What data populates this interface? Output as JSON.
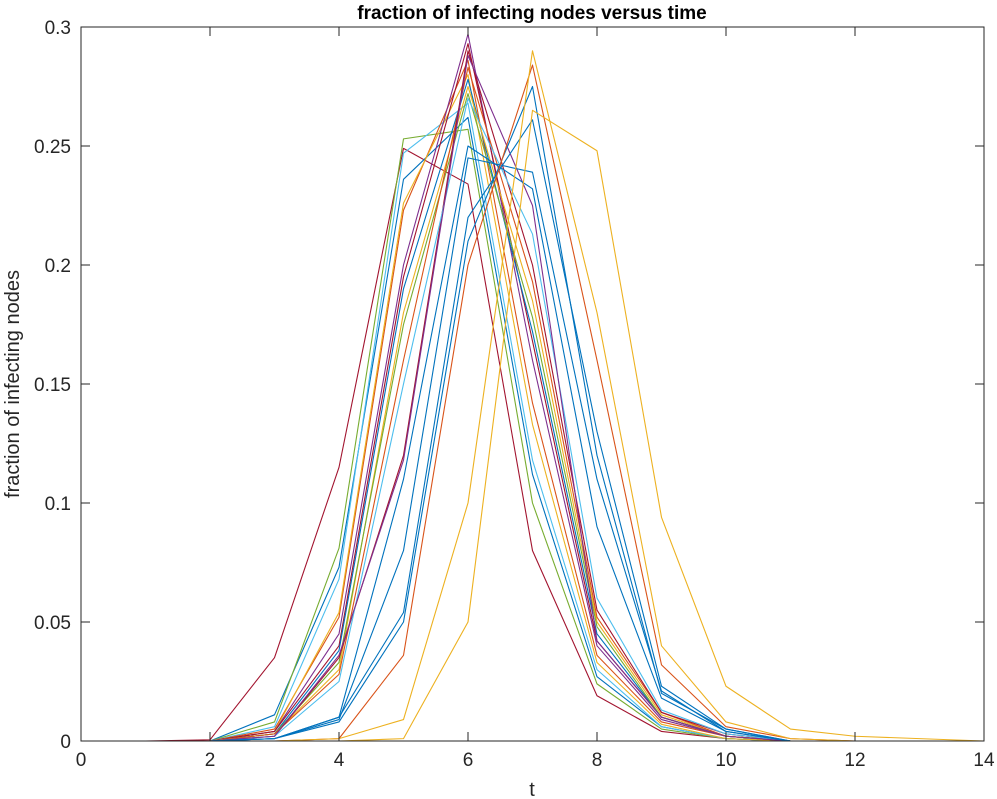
{
  "chart_data": {
    "type": "line",
    "title": "fraction of infecting nodes versus time",
    "xlabel": "t",
    "ylabel": "fraction of infecting nodes",
    "xlim": [
      0,
      14
    ],
    "ylim": [
      0,
      0.3
    ],
    "xticks": [
      "0",
      "2",
      "4",
      "6",
      "8",
      "10",
      "12",
      "14"
    ],
    "yticks": [
      "0",
      "0.05",
      "0.1",
      "0.15",
      "0.2",
      "0.25",
      "0.3"
    ],
    "grid": false,
    "legend": "none",
    "x": [
      1,
      2,
      3,
      4,
      5,
      6,
      7,
      8,
      9,
      10,
      11,
      12,
      13,
      14
    ],
    "series": [
      {
        "color": "#A2142F",
        "values": [
          0,
          0.0005,
          0.035,
          0.115,
          0.249,
          0.234,
          0.08,
          0.019,
          0.004,
          0.001,
          0,
          0,
          0,
          0
        ]
      },
      {
        "color": "#0072BD",
        "values": [
          0,
          0,
          0.011,
          0.073,
          0.236,
          0.262,
          0.112,
          0.027,
          0.006,
          0.001,
          0,
          0,
          0,
          0
        ]
      },
      {
        "color": "#77AC30",
        "values": [
          0,
          0,
          0.008,
          0.081,
          0.253,
          0.257,
          0.1,
          0.024,
          0.005,
          0.001,
          0,
          0,
          0,
          0
        ]
      },
      {
        "color": "#4DBEEE",
        "values": [
          0,
          0,
          0.006,
          0.068,
          0.247,
          0.268,
          0.118,
          0.03,
          0.006,
          0.001,
          0,
          0,
          0,
          0
        ]
      },
      {
        "color": "#D95319",
        "values": [
          0,
          0,
          0.005,
          0.052,
          0.223,
          0.286,
          0.142,
          0.036,
          0.008,
          0.002,
          0,
          0,
          0,
          0
        ]
      },
      {
        "color": "#EDB120",
        "values": [
          0,
          0,
          0.004,
          0.054,
          0.226,
          0.28,
          0.133,
          0.033,
          0.007,
          0.001,
          0,
          0,
          0,
          0
        ]
      },
      {
        "color": "#7E2F8E",
        "values": [
          0,
          0,
          0.004,
          0.045,
          0.2,
          0.297,
          0.16,
          0.04,
          0.009,
          0.002,
          0,
          0,
          0,
          0
        ]
      },
      {
        "color": "#A2142F",
        "values": [
          0,
          0,
          0.004,
          0.04,
          0.195,
          0.293,
          0.168,
          0.042,
          0.01,
          0.002,
          0,
          0,
          0,
          0
        ]
      },
      {
        "color": "#0072BD",
        "values": [
          0,
          0,
          0.003,
          0.038,
          0.19,
          0.278,
          0.172,
          0.045,
          0.01,
          0.002,
          0,
          0,
          0,
          0
        ]
      },
      {
        "color": "#EDB120",
        "values": [
          0,
          0,
          0.003,
          0.03,
          0.18,
          0.275,
          0.185,
          0.05,
          0.011,
          0.002,
          0,
          0,
          0,
          0
        ]
      },
      {
        "color": "#77AC30",
        "values": [
          0,
          0,
          0.003,
          0.033,
          0.175,
          0.272,
          0.178,
          0.048,
          0.01,
          0.002,
          0,
          0,
          0,
          0
        ]
      },
      {
        "color": "#D95319",
        "values": [
          0,
          0,
          0.003,
          0.028,
          0.16,
          0.283,
          0.193,
          0.052,
          0.012,
          0.002,
          0,
          0,
          0,
          0
        ]
      },
      {
        "color": "#A2142F",
        "values": [
          0,
          0,
          0.002,
          0.035,
          0.12,
          0.29,
          0.2,
          0.055,
          0.012,
          0.003,
          0,
          0,
          0,
          0
        ]
      },
      {
        "color": "#4DBEEE",
        "values": [
          0,
          0,
          0.002,
          0.025,
          0.15,
          0.27,
          0.213,
          0.06,
          0.013,
          0.003,
          0,
          0,
          0,
          0
        ]
      },
      {
        "color": "#7E2F8E",
        "values": [
          0,
          0,
          0.002,
          0.036,
          0.118,
          0.288,
          0.225,
          0.042,
          0.01,
          0.002,
          0,
          0,
          0,
          0
        ]
      },
      {
        "color": "#0072BD",
        "values": [
          0,
          0,
          0.001,
          0.01,
          0.11,
          0.25,
          0.232,
          0.09,
          0.018,
          0.004,
          0,
          0,
          0,
          0
        ]
      },
      {
        "color": "#0072BD",
        "values": [
          0,
          0,
          0.001,
          0.009,
          0.08,
          0.245,
          0.239,
          0.11,
          0.021,
          0.004,
          0,
          0,
          0,
          0
        ]
      },
      {
        "color": "#0072BD",
        "values": [
          0,
          0,
          0.001,
          0.01,
          0.054,
          0.22,
          0.261,
          0.13,
          0.023,
          0.005,
          0,
          0,
          0,
          0
        ]
      },
      {
        "color": "#0072BD",
        "values": [
          0,
          0,
          0.001,
          0.008,
          0.05,
          0.21,
          0.275,
          0.12,
          0.02,
          0.005,
          0,
          0,
          0,
          0
        ]
      },
      {
        "color": "#D95319",
        "values": [
          0,
          0,
          0,
          0.001,
          0.036,
          0.2,
          0.284,
          0.16,
          0.032,
          0.006,
          0.001,
          0,
          0,
          0
        ]
      },
      {
        "color": "#EDB120",
        "values": [
          0,
          0,
          0,
          0.001,
          0.009,
          0.1,
          0.29,
          0.18,
          0.04,
          0.008,
          0.001,
          0,
          0,
          0
        ]
      },
      {
        "color": "#EDB120",
        "values": [
          0,
          0,
          0,
          0,
          0.001,
          0.05,
          0.265,
          0.248,
          0.094,
          0.023,
          0.005,
          0.002,
          0.001,
          0
        ]
      }
    ]
  }
}
